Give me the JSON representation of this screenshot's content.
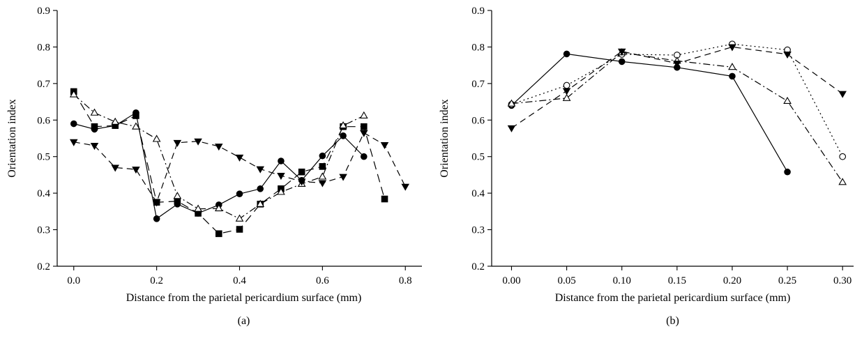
{
  "chart_data": [
    {
      "type": "line",
      "panel_label": "(a)",
      "xlabel": "Distance from the parietal pericardium surface (mm)",
      "ylabel": "Orientation index",
      "xlim": [
        -0.04,
        0.84
      ],
      "ylim": [
        0.2,
        0.9
      ],
      "xticks": [
        0.0,
        0.2,
        0.4,
        0.6,
        0.8
      ],
      "xtick_labels": [
        "0.0",
        "0.2",
        "0.4",
        "0.6",
        "0.8"
      ],
      "yticks": [
        0.2,
        0.3,
        0.4,
        0.5,
        0.6,
        0.7,
        0.8,
        0.9
      ],
      "ytick_labels": [
        "0.2",
        "0.3",
        "0.4",
        "0.5",
        "0.6",
        "0.7",
        "0.8",
        "0.9"
      ],
      "grid": false,
      "series": [
        {
          "marker": "filled-circle",
          "line_style": "solid",
          "color": "#000000",
          "x": [
            0.0,
            0.05,
            0.1,
            0.15,
            0.2,
            0.25,
            0.3,
            0.35,
            0.4,
            0.45,
            0.5,
            0.55,
            0.6,
            0.65,
            0.7
          ],
          "y": [
            0.59,
            0.575,
            0.585,
            0.62,
            0.33,
            0.37,
            0.345,
            0.368,
            0.398,
            0.412,
            0.488,
            0.435,
            0.502,
            0.557,
            0.5
          ]
        },
        {
          "marker": "filled-square",
          "line_style": "long-dash",
          "color": "#000000",
          "x": [
            0.0,
            0.05,
            0.1,
            0.15,
            0.2,
            0.25,
            0.3,
            0.35,
            0.4,
            0.45,
            0.5,
            0.55,
            0.6,
            0.65,
            0.7,
            0.75
          ],
          "y": [
            0.678,
            0.582,
            0.585,
            0.612,
            0.375,
            0.378,
            0.345,
            0.289,
            0.301,
            0.37,
            0.412,
            0.458,
            0.473,
            0.582,
            0.582,
            0.384
          ]
        },
        {
          "marker": "open-triangle",
          "line_style": "dash-dot",
          "color": "#000000",
          "x": [
            0.0,
            0.05,
            0.1,
            0.15,
            0.2,
            0.25,
            0.3,
            0.35,
            0.4,
            0.45,
            0.5,
            0.55,
            0.6,
            0.65,
            0.7
          ],
          "y": [
            0.67,
            0.62,
            0.595,
            0.582,
            0.548,
            0.392,
            0.357,
            0.358,
            0.33,
            0.37,
            0.403,
            0.425,
            0.445,
            0.585,
            0.612
          ]
        },
        {
          "marker": "filled-down-triangle",
          "line_style": "dash",
          "color": "#000000",
          "x": [
            0.0,
            0.05,
            0.1,
            0.15,
            0.2,
            0.25,
            0.3,
            0.35,
            0.4,
            0.45,
            0.5,
            0.55,
            0.6,
            0.65,
            0.7,
            0.75,
            0.8
          ],
          "y": [
            0.54,
            0.53,
            0.47,
            0.465,
            0.375,
            0.538,
            0.542,
            0.528,
            0.498,
            0.466,
            0.448,
            0.432,
            0.428,
            0.445,
            0.565,
            0.532,
            0.418
          ]
        }
      ]
    },
    {
      "type": "line",
      "panel_label": "(b)",
      "xlabel": "Distance from the parietal pericardium surface (mm)",
      "ylabel": "Orientation index",
      "xlim": [
        -0.018,
        0.31
      ],
      "ylim": [
        0.2,
        0.9
      ],
      "xticks": [
        0.0,
        0.05,
        0.1,
        0.15,
        0.2,
        0.25,
        0.3
      ],
      "xtick_labels": [
        "0.00",
        "0.05",
        "0.10",
        "0.15",
        "0.20",
        "0.25",
        "0.30"
      ],
      "yticks": [
        0.2,
        0.3,
        0.4,
        0.5,
        0.6,
        0.7,
        0.8,
        0.9
      ],
      "ytick_labels": [
        "0.2",
        "0.3",
        "0.4",
        "0.5",
        "0.6",
        "0.7",
        "0.8",
        "0.9"
      ],
      "grid": false,
      "series": [
        {
          "marker": "filled-circle",
          "line_style": "solid",
          "color": "#000000",
          "x": [
            0.0,
            0.05,
            0.1,
            0.15,
            0.2,
            0.25
          ],
          "y": [
            0.64,
            0.781,
            0.76,
            0.744,
            0.72,
            0.458
          ]
        },
        {
          "marker": "open-circle",
          "line_style": "dotted",
          "color": "#000000",
          "x": [
            0.0,
            0.05,
            0.1,
            0.15,
            0.2,
            0.25,
            0.3
          ],
          "y": [
            0.643,
            0.695,
            0.78,
            0.778,
            0.808,
            0.792,
            0.5
          ]
        },
        {
          "marker": "open-triangle",
          "line_style": "dash-dot",
          "color": "#000000",
          "x": [
            0.0,
            0.05,
            0.1,
            0.15,
            0.2,
            0.25,
            0.3
          ],
          "y": [
            0.645,
            0.66,
            0.785,
            0.762,
            0.745,
            0.652,
            0.43
          ]
        },
        {
          "marker": "filled-down-triangle",
          "line_style": "dash",
          "color": "#000000",
          "x": [
            0.0,
            0.05,
            0.1,
            0.15,
            0.2,
            0.25,
            0.3
          ],
          "y": [
            0.578,
            0.68,
            0.788,
            0.755,
            0.8,
            0.78,
            0.672
          ]
        }
      ]
    }
  ]
}
